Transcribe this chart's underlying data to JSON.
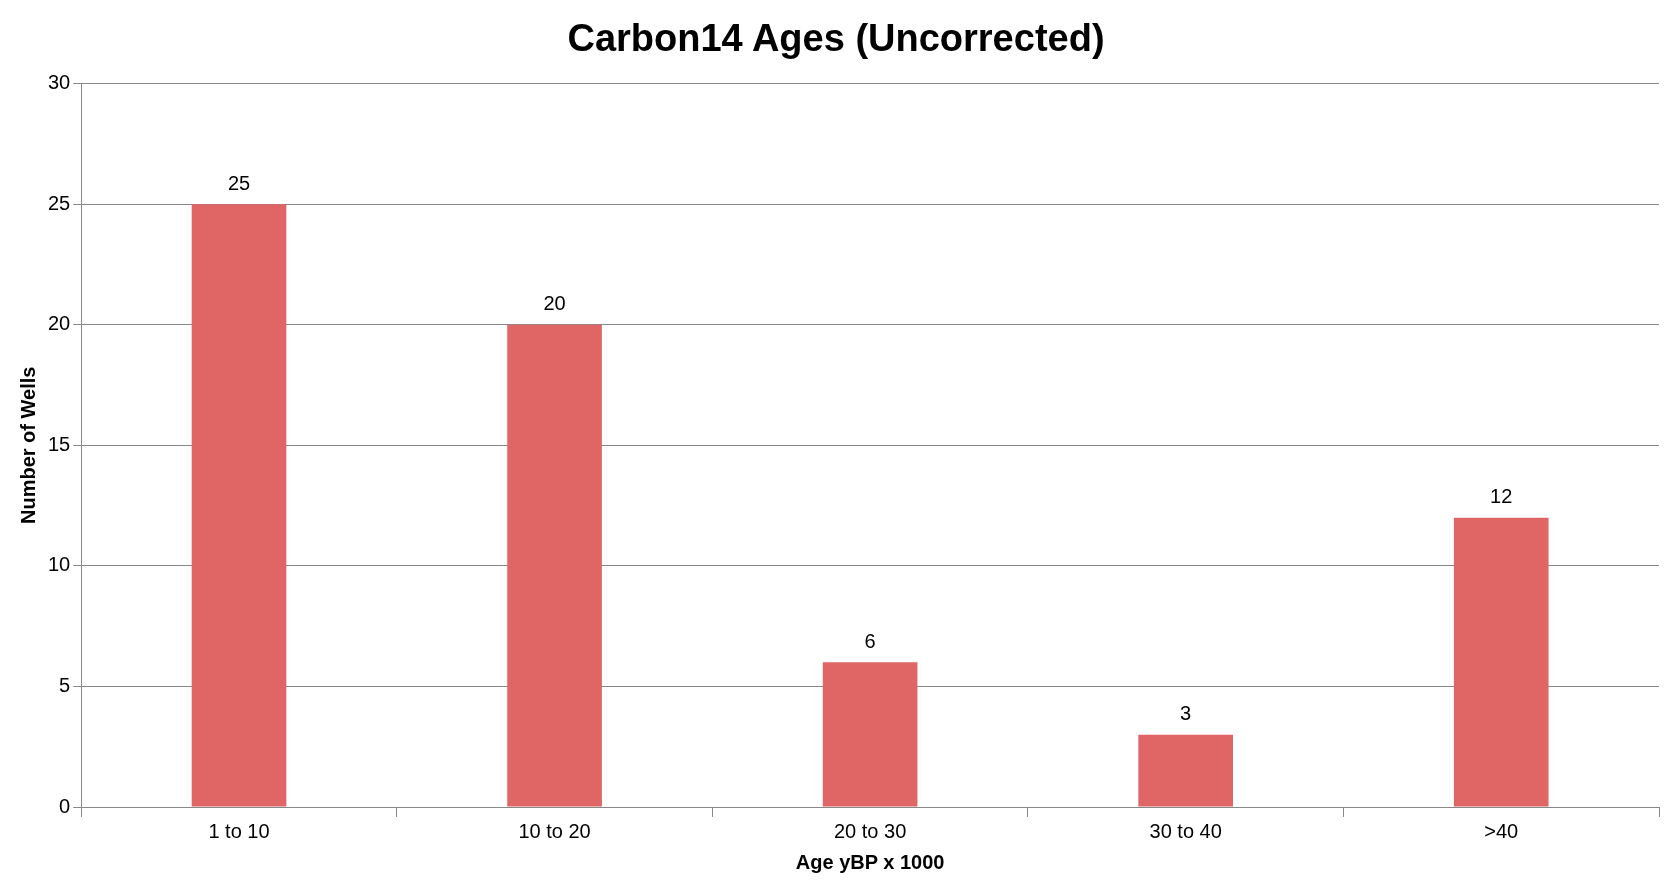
{
  "chart_data": {
    "type": "bar",
    "title": "Carbon14 Ages (Uncorrected)",
    "xlabel": "Age yBP x 1000",
    "ylabel": "Number of Wells",
    "categories": [
      "1 to 10",
      "10 to 20",
      "20 to 30",
      "30 to 40",
      ">40"
    ],
    "values": [
      25,
      20,
      6,
      3,
      12
    ],
    "color": "#e06666",
    "ylim": [
      0,
      30
    ],
    "yticks": [
      0,
      5,
      10,
      15,
      20,
      25,
      30
    ],
    "grid": "y",
    "data_labels": true
  }
}
